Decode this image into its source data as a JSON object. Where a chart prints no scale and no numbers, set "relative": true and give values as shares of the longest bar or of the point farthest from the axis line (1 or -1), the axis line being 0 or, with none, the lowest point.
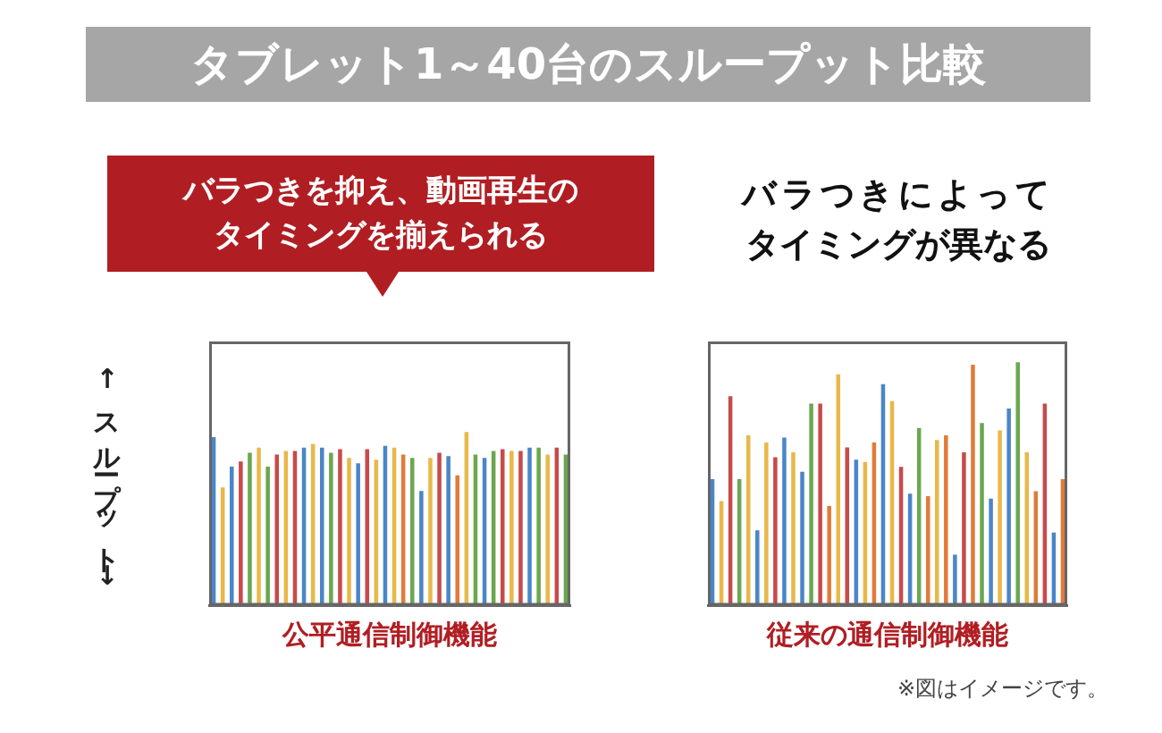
{
  "chart_data": [
    {
      "type": "bar",
      "title": "タブレット1～40台のスループット比較",
      "subtitle": "バラつきを抑え、動画再生のタイミングを揃えられる",
      "xlabel": "公平通信制御機能",
      "ylabel": "↑スループット↓",
      "relative": true,
      "categories": [
        null,
        null,
        null,
        null,
        null,
        null,
        null,
        null,
        null,
        null,
        null,
        null,
        null,
        null,
        null,
        null,
        null,
        null,
        null,
        null,
        null,
        null,
        null,
        null,
        null,
        null,
        null,
        null,
        null,
        null,
        null,
        null,
        null,
        null,
        null,
        null,
        null,
        null,
        null,
        null
      ],
      "values": [
        0.97,
        0.68,
        0.8,
        0.83,
        0.88,
        0.91,
        0.8,
        0.87,
        0.89,
        0.89,
        0.91,
        0.93,
        0.91,
        0.88,
        0.9,
        0.85,
        0.82,
        0.9,
        0.84,
        0.92,
        0.91,
        0.87,
        0.85,
        0.66,
        0.85,
        0.88,
        0.86,
        0.75,
        1,
        0.87,
        0.85,
        0.89,
        0.9,
        0.89,
        0.89,
        0.91,
        0.91,
        0.87,
        0.91,
        0.87
      ],
      "colors": [
        "#4a86c8",
        "#e8b84a",
        "#4a86c8",
        "#c94a4a",
        "#6aa84f",
        "#e8b84a",
        "#6aa84f",
        "#c94a4a",
        "#e8b84a",
        "#c94a4a",
        "#4a86c8",
        "#e8b84a",
        "#4a86c8",
        "#6aa84f",
        "#c94a4a",
        "#e8b84a",
        "#4a86c8",
        "#c94a4a",
        "#e8b84a",
        "#4a86c8",
        "#e8b84a",
        "#e07b3a",
        "#6aa84f",
        "#4a86c8",
        "#e8b84a",
        "#c94a4a",
        "#4a86c8",
        "#e07b3a",
        "#e8b84a",
        "#6aa84f",
        "#4a86c8",
        "#6aa84f",
        "#c94a4a",
        "#e8b84a",
        "#c94a4a",
        "#4a86c8",
        "#6aa84f",
        "#e8b84a",
        "#c94a4a",
        "#6aa84f"
      ]
    },
    {
      "type": "bar",
      "subtitle": "バラつきによってタイミングが異なる",
      "xlabel": "従来の通信制御機能",
      "annotations": [
        "※図はイメージです。"
      ],
      "relative": true,
      "categories": [
        null,
        null,
        null,
        null,
        null,
        null,
        null,
        null,
        null,
        null,
        null,
        null,
        null,
        null,
        null,
        null,
        null,
        null,
        null,
        null,
        null,
        null,
        null,
        null,
        null,
        null,
        null,
        null,
        null,
        null,
        null,
        null,
        null,
        null,
        null,
        null,
        null,
        null,
        null,
        null
      ],
      "values": [
        0.52,
        0.43,
        0.86,
        0.52,
        0.7,
        0.31,
        0.67,
        0.61,
        0.69,
        0.63,
        0.55,
        0.83,
        0.83,
        0.41,
        0.95,
        0.65,
        0.6,
        0.59,
        0.67,
        0.91,
        0.84,
        0.57,
        0.46,
        0.73,
        0.45,
        0.68,
        0.7,
        0.21,
        0.63,
        0.99,
        0.75,
        0.44,
        0.72,
        0.81,
        1,
        0.63,
        0.47,
        0.83,
        0.3,
        0.52
      ],
      "colors": [
        "#4a86c8",
        "#e8b84a",
        "#c94a4a",
        "#6aa84f",
        "#e8b84a",
        "#4a86c8",
        "#e8b84a",
        "#c94a4a",
        "#4a86c8",
        "#e8b84a",
        "#4a86c8",
        "#6aa84f",
        "#c94a4a",
        "#e07b3a",
        "#e8b84a",
        "#c94a4a",
        "#4a86c8",
        "#e8b84a",
        "#e07b3a",
        "#4a86c8",
        "#e8b84a",
        "#c94a4a",
        "#4a86c8",
        "#6aa84f",
        "#e07b3a",
        "#e8b84a",
        "#e07b3a",
        "#4a86c8",
        "#c94a4a",
        "#e07b3a",
        "#6aa84f",
        "#4a86c8",
        "#e8b84a",
        "#4a86c8",
        "#6aa84f",
        "#e8b84a",
        "#e07b3a",
        "#c94a4a",
        "#4a86c8",
        "#e07b3a"
      ]
    }
  ]
}
